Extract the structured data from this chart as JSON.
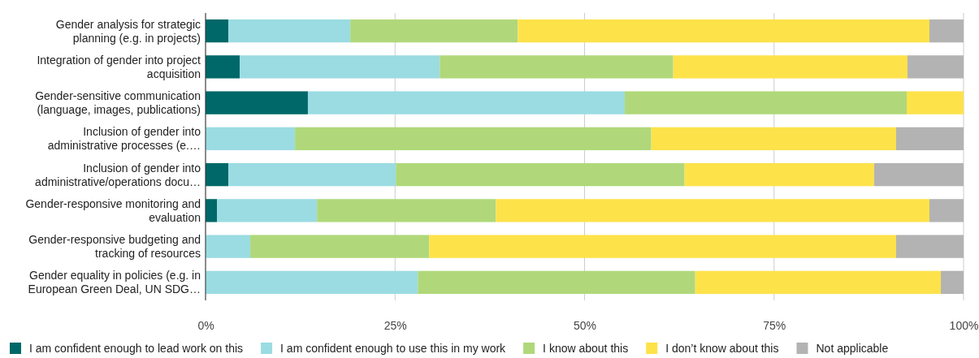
{
  "chart_data": {
    "type": "bar",
    "orientation": "horizontal",
    "stacked": true,
    "categories": [
      "Gender analysis for strategic planning (e.g. in projects)",
      "Integration of gender into project acquisition",
      "Gender-sensitive communication (language, images, publications)",
      "Inclusion of gender into administrative processes (e.…",
      "Inclusion of gender into administrative/operations docu…",
      "Gender-responsive monitoring and evaluation",
      "Gender-responsive budgeting and tracking of resources",
      "Gender equality in policies (e.g. in European Green Deal, UN SDG…"
    ],
    "series": [
      {
        "name": "I am confident enough to lead work on this",
        "color": "#006868",
        "values": [
          3.0,
          4.5,
          13.5,
          0,
          3.0,
          1.5,
          0,
          0
        ]
      },
      {
        "name": "I am confident enough to use this in my work",
        "color": "#9adce2",
        "values": [
          16.1,
          26.4,
          41.8,
          11.8,
          22.1,
          13.2,
          5.9,
          28.0
        ]
      },
      {
        "name": "I know about this",
        "color": "#b0d87a",
        "values": [
          22.1,
          30.8,
          37.2,
          47.0,
          38.1,
          23.6,
          23.6,
          36.6
        ]
      },
      {
        "name": "I don’t know about this",
        "color": "#fee24a",
        "values": [
          54.3,
          30.9,
          7.5,
          32.3,
          25.0,
          57.2,
          61.6,
          32.4
        ]
      },
      {
        "name": "Not applicable",
        "color": "#b3b3b3",
        "values": [
          4.5,
          7.4,
          0,
          8.9,
          11.8,
          4.5,
          8.9,
          3.0
        ]
      }
    ],
    "xlim": [
      0,
      100
    ],
    "xticks": [
      {
        "value": 0,
        "label": "0%"
      },
      {
        "value": 25,
        "label": "25%"
      },
      {
        "value": 50,
        "label": "50%"
      },
      {
        "value": 75,
        "label": "75%"
      },
      {
        "value": 100,
        "label": "100%"
      }
    ],
    "grid": "x",
    "legend": "bottom"
  }
}
